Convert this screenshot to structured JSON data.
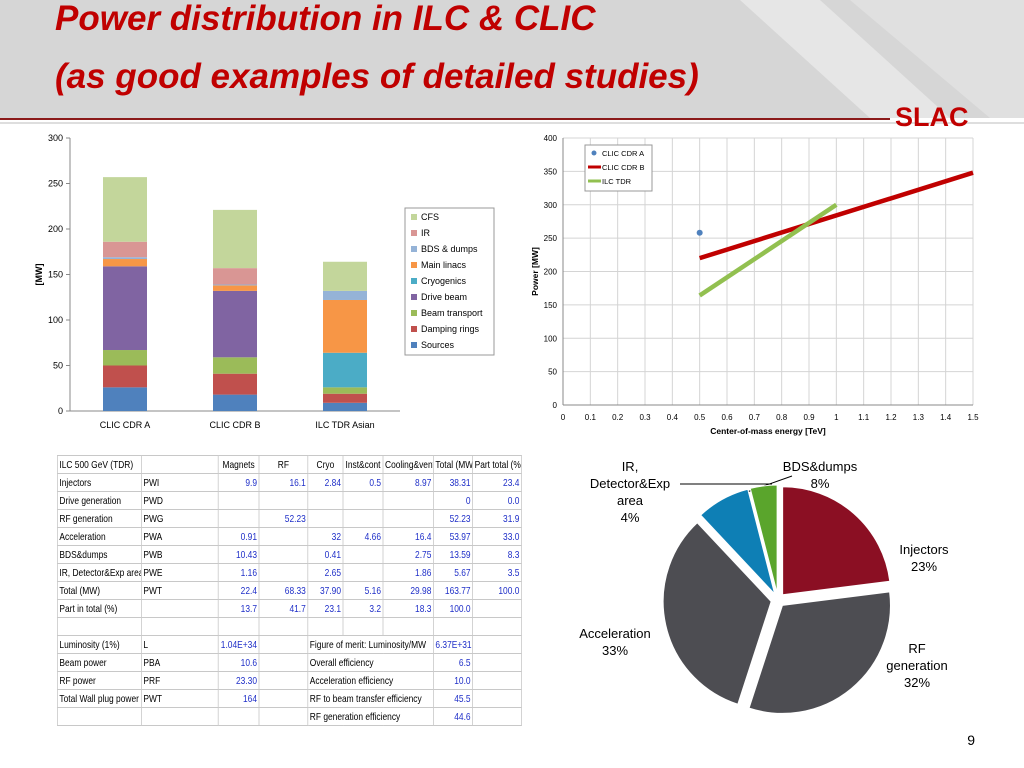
{
  "title": [
    "Power distribution in ILC & CLIC",
    "(as good examples of detailed studies)"
  ],
  "logo": "SLAC",
  "page_number": "9",
  "chart_data": [
    {
      "type": "bar",
      "stacked": true,
      "ylabel": "[MW]",
      "categories": [
        "CLIC CDR A",
        "CLIC CDR B",
        "ILC TDR Asian"
      ],
      "ylim": [
        0,
        300
      ],
      "yticks": [
        0,
        50,
        100,
        150,
        200,
        250,
        300
      ],
      "legend": "right",
      "series": [
        {
          "name": "Sources",
          "color": "#4f81bd",
          "values": [
            26,
            18,
            9
          ]
        },
        {
          "name": "Damping rings",
          "color": "#c0504d",
          "values": [
            24,
            23,
            10
          ]
        },
        {
          "name": "Beam transport",
          "color": "#9bbb59",
          "values": [
            17,
            18,
            7
          ]
        },
        {
          "name": "Drive beam",
          "color": "#8064a2",
          "values": [
            92,
            73,
            0
          ]
        },
        {
          "name": "Cryogenics",
          "color": "#4bacc6",
          "values": [
            0,
            0,
            38
          ]
        },
        {
          "name": "Main linacs",
          "color": "#f79646",
          "values": [
            8,
            6,
            58
          ]
        },
        {
          "name": "BDS & dumps",
          "color": "#95b3d7",
          "values": [
            2,
            1,
            10
          ]
        },
        {
          "name": "IR",
          "color": "#d99694",
          "values": [
            17,
            18,
            0
          ]
        },
        {
          "name": "CFS",
          "color": "#c3d69b",
          "values": [
            71,
            64,
            32
          ]
        }
      ]
    },
    {
      "type": "line",
      "xlabel": "Center-of-mass energy [TeV]",
      "ylabel": "Power [MW]",
      "xlim": [
        0,
        1.5
      ],
      "xticks": [
        0,
        0.1,
        0.2,
        0.3,
        0.4,
        0.5,
        0.6,
        0.7,
        0.8,
        0.9,
        1,
        1.1,
        1.2,
        1.3,
        1.4,
        1.5
      ],
      "ylim": [
        0,
        400
      ],
      "yticks": [
        0,
        50,
        100,
        150,
        200,
        250,
        300,
        350,
        400
      ],
      "grid": true,
      "legend": "upper left",
      "series": [
        {
          "name": "CLIC CDR A",
          "color": "#4f81bd",
          "marker": true,
          "line": false,
          "x": [
            0.5
          ],
          "values": [
            258
          ]
        },
        {
          "name": "CLIC CDR B",
          "color": "#c00000",
          "marker": false,
          "line": true,
          "x": [
            0.5,
            1.5
          ],
          "values": [
            220,
            348
          ]
        },
        {
          "name": "ILC TDR",
          "color": "#92c050",
          "marker": false,
          "line": true,
          "x": [
            0.5,
            1.0
          ],
          "values": [
            164,
            300
          ]
        }
      ]
    },
    {
      "type": "pie",
      "categories": [
        "Injectors",
        "RF generation",
        "Acceleration",
        "BDS&dumps",
        "IR, Detector&Exp area"
      ],
      "values": [
        23,
        32,
        33,
        8,
        4
      ],
      "value_labels": [
        "23%",
        "32%",
        "33%",
        "8%",
        "4%"
      ],
      "colors": [
        "#8b0f23",
        "#4d4d52",
        "#4d4d52",
        "#0e7fb5",
        "#5aa52c"
      ]
    }
  ],
  "table": {
    "header": [
      "ILC 500 GeV (TDR)",
      null,
      "Magnets",
      "RF",
      "Cryo",
      "Inst&cont",
      "Cooling&vent",
      "Total (MW)",
      "Part total (%)"
    ],
    "rows": [
      [
        "Injectors",
        "PWI",
        "9.9",
        "16.1",
        "2.84",
        "0.5",
        "8.97",
        "38.31",
        "23.4"
      ],
      [
        "Drive generation",
        "PWD",
        null,
        null,
        null,
        null,
        null,
        "0",
        "0.0"
      ],
      [
        "RF generation",
        "PWG",
        null,
        "52.23",
        null,
        null,
        null,
        "52.23",
        "31.9"
      ],
      [
        "Acceleration",
        "PWA",
        "0.91",
        null,
        "32",
        "4.66",
        "16.4",
        "53.97",
        "33.0"
      ],
      [
        "BDS&dumps",
        "PWB",
        "10.43",
        null,
        "0.41",
        null,
        "2.75",
        "13.59",
        "8.3"
      ],
      [
        "IR, Detector&Exp area",
        "PWE",
        "1.16",
        null,
        "2.65",
        null,
        "1.86",
        "5.67",
        "3.5"
      ],
      [
        "Total (MW)",
        "PWT",
        "22.4",
        "68.33",
        "37.90",
        "5.16",
        "29.98",
        "163.77",
        "100.0"
      ],
      [
        "Part in total (%)",
        null,
        "13.7",
        "41.7",
        "23.1",
        "3.2",
        "18.3",
        "100.0",
        null
      ],
      [
        null,
        null,
        null,
        null,
        null,
        null,
        null,
        null,
        null
      ],
      [
        "Luminosity (1%)",
        "L",
        "1.04E+34",
        null,
        "Figure of merit: Luminosity/MW",
        null,
        null,
        "6.37E+31",
        null
      ],
      [
        "Beam power",
        "PBA",
        "10.6",
        null,
        "Overall efficiency",
        null,
        null,
        "6.5",
        null
      ],
      [
        "RF power",
        "PRF",
        "23.30",
        null,
        "Acceleration efficiency",
        null,
        null,
        "10.0",
        null
      ],
      [
        "Total Wall plug power",
        "PWT",
        "164",
        null,
        "RF to beam transfer efficiency",
        null,
        null,
        "45.5",
        null
      ],
      [
        null,
        null,
        null,
        null,
        "RF generation efficiency",
        null,
        null,
        "44.6",
        null
      ]
    ]
  }
}
